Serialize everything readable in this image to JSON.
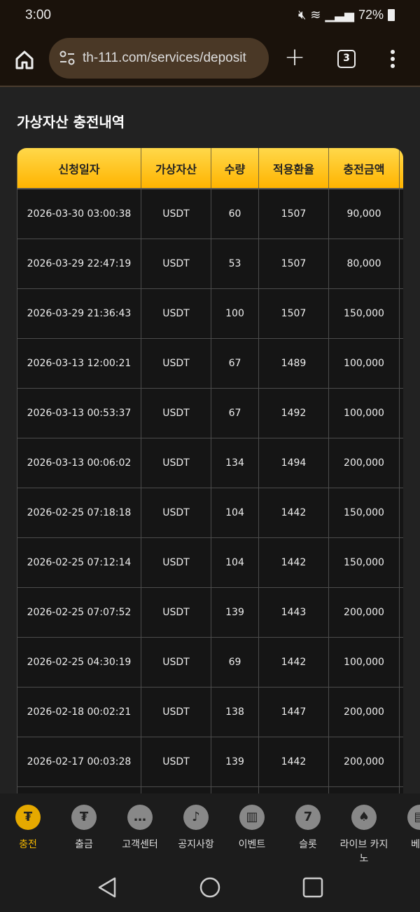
{
  "status": {
    "time": "3:00",
    "battery": "72%"
  },
  "browser": {
    "url": "th-111.com/services/deposit",
    "tab_count": "3"
  },
  "page": {
    "title": "가상자산 충전내역"
  },
  "table": {
    "headers": [
      "신청일자",
      "가상자산",
      "수량",
      "적용환율",
      "충전금액"
    ],
    "rows": [
      [
        "2026-03-30 03:00:38",
        "USDT",
        "60",
        "1507",
        "90,000"
      ],
      [
        "2026-03-29 22:47:19",
        "USDT",
        "53",
        "1507",
        "80,000"
      ],
      [
        "2026-03-29 21:36:43",
        "USDT",
        "100",
        "1507",
        "150,000"
      ],
      [
        "2026-03-13 12:00:21",
        "USDT",
        "67",
        "1489",
        "100,000"
      ],
      [
        "2026-03-13 00:53:37",
        "USDT",
        "67",
        "1492",
        "100,000"
      ],
      [
        "2026-03-13 00:06:02",
        "USDT",
        "134",
        "1494",
        "200,000"
      ],
      [
        "2026-02-25 07:18:18",
        "USDT",
        "104",
        "1442",
        "150,000"
      ],
      [
        "2026-02-25 07:12:14",
        "USDT",
        "104",
        "1442",
        "150,000"
      ],
      [
        "2026-02-25 07:07:52",
        "USDT",
        "139",
        "1443",
        "200,000"
      ],
      [
        "2026-02-25 04:30:19",
        "USDT",
        "69",
        "1442",
        "100,000"
      ],
      [
        "2026-02-18 00:02:21",
        "USDT",
        "138",
        "1447",
        "200,000"
      ],
      [
        "2026-02-17 00:03:28",
        "USDT",
        "139",
        "1442",
        "200,000"
      ]
    ]
  },
  "bottom_nav": [
    {
      "label": "충전",
      "icon": "tether-deposit-icon",
      "active": true
    },
    {
      "label": "출금",
      "icon": "tether-withdraw-icon"
    },
    {
      "label": "고객센터",
      "icon": "headset-icon"
    },
    {
      "label": "공지사항",
      "icon": "bell-icon"
    },
    {
      "label": "이벤트",
      "icon": "gift-icon"
    },
    {
      "label": "슬롯",
      "icon": "slot-machine-icon"
    },
    {
      "label": "라이브 카지노",
      "icon": "cards-icon"
    },
    {
      "label": "베팅",
      "icon": "betting-icon"
    }
  ],
  "colors": {
    "accent": "#ffc21a",
    "active_nav": "#f5b800"
  }
}
